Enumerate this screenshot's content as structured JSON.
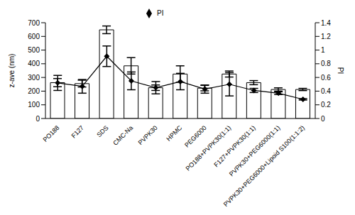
{
  "chart_data": {
    "type": "bar",
    "categories": [
      "PO188",
      "F127",
      "SDS",
      "CMC-Na",
      "PVPK30",
      "HPMC",
      "PEG6000",
      "PO188+PVPK30(1:1)",
      "F127+PVPK30(1:1)",
      "PVPK30+PEG6000(1:1)",
      "PVPK30+PEG6000+Lipoid S100(1:1:2)"
    ],
    "ylabel": "z-ave (nm)",
    "y2label": "PI",
    "ylim": [
      0,
      700
    ],
    "yticks": [
      0,
      100,
      200,
      300,
      400,
      500,
      600,
      700
    ],
    "y2lim": [
      0,
      1.4
    ],
    "y2ticks": [
      0,
      0.2,
      0.4,
      0.6,
      0.8,
      1,
      1.2,
      1.4
    ],
    "legend": "top",
    "series": [
      {
        "name": "z-ave",
        "type": "bar",
        "color": "#ffffff",
        "values": [
          262,
          255,
          648,
          385,
          225,
          325,
          222,
          325,
          262,
          212,
          212
        ],
        "errors": [
          30,
          25,
          28,
          60,
          20,
          60,
          20,
          22,
          15,
          12,
          8
        ]
      },
      {
        "name": "PI",
        "type": "line",
        "axis": "y2",
        "color": "#000000",
        "marker": "diamond",
        "values": [
          0.52,
          0.47,
          0.91,
          0.55,
          0.45,
          0.54,
          0.43,
          0.5,
          0.41,
          0.37,
          0.28
        ],
        "errors": [
          0.11,
          0.1,
          0.15,
          0.13,
          0.09,
          0.12,
          0.06,
          0.17,
          0.03,
          0.02,
          0.01
        ]
      }
    ]
  }
}
